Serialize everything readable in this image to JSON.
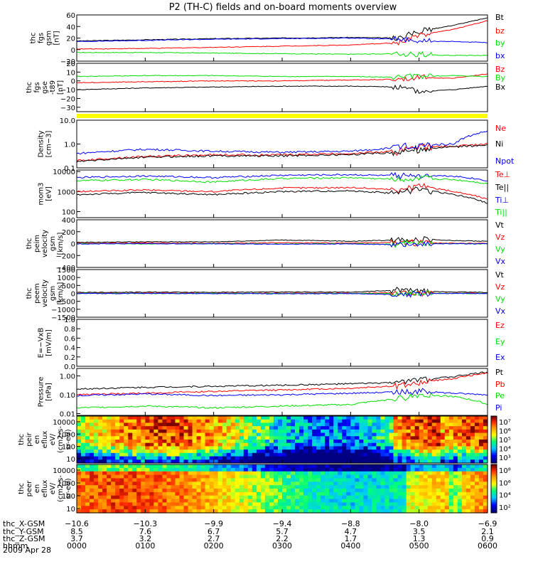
{
  "page": {
    "title": "P2 (TH-C) fields and on-board moments overview",
    "date_label": "2009 Apr 28"
  },
  "colors": {
    "black": "#000000",
    "red": "#ff0000",
    "green": "#00e000",
    "blue": "#0000ff",
    "yellow": "#ffff00",
    "tick": "#000000",
    "bg": "#ffffff"
  },
  "chart_data": [
    {
      "type": "line",
      "ylabel": [
        "thc",
        "fgs",
        "gsm",
        "[nT]"
      ],
      "ylim": [
        -20,
        60
      ],
      "yticks": [
        "60",
        "40",
        "20",
        "0",
        "−20"
      ],
      "series": [
        {
          "name": "Bt",
          "color": "black",
          "x": [
            0,
            1,
            2,
            3,
            4,
            4.7,
            5,
            5.5,
            6
          ],
          "y": [
            15,
            17,
            19,
            20,
            21,
            20,
            32,
            42,
            55
          ]
        },
        {
          "name": "bz",
          "color": "red",
          "x": [
            0,
            1,
            2,
            3,
            4,
            4.7,
            5,
            5.5,
            6
          ],
          "y": [
            1,
            2,
            4,
            6,
            8,
            12,
            25,
            35,
            50
          ]
        },
        {
          "name": "by",
          "color": "green",
          "x": [
            0,
            1,
            2,
            3,
            4,
            4.7,
            5,
            5.5,
            6
          ],
          "y": [
            -5,
            -5,
            -6,
            -7,
            -8,
            -7,
            -9,
            -10,
            -10
          ]
        },
        {
          "name": "bx",
          "color": "blue",
          "x": [
            0,
            1,
            2,
            3,
            4,
            4.7,
            5,
            5.5,
            6
          ],
          "y": [
            14,
            16,
            18,
            19,
            20,
            18,
            15,
            14,
            12
          ]
        }
      ]
    },
    {
      "type": "line",
      "ylabel": [
        "thc",
        "fgs",
        "gse",
        "-t89",
        "[nT]"
      ],
      "ylim": [
        -35,
        20
      ],
      "yticks": [
        "20",
        "10",
        "0",
        "−10",
        "−20",
        "−30"
      ],
      "series": [
        {
          "name": "Bz",
          "color": "red",
          "x": [
            0,
            1,
            2,
            3,
            4,
            4.7,
            5,
            5.5,
            6
          ],
          "y": [
            -2,
            -1,
            0,
            0,
            1,
            2,
            4,
            3,
            8
          ]
        },
        {
          "name": "By",
          "color": "green",
          "x": [
            0,
            1,
            2,
            3,
            4,
            4.7,
            5,
            5.5,
            6
          ],
          "y": [
            5,
            6,
            6,
            5,
            5,
            4,
            5,
            6,
            5
          ]
        },
        {
          "name": "Bx",
          "color": "black",
          "x": [
            0,
            1,
            2,
            3,
            4,
            4.7,
            5,
            5.5,
            6
          ],
          "y": [
            -10,
            -8,
            -7,
            -6,
            -6,
            -7,
            -12,
            -10,
            -6
          ]
        }
      ]
    },
    {
      "type": "bar",
      "description_bar": "quality flag strip",
      "color": "yellow"
    },
    {
      "type": "line",
      "scale": "log",
      "ylabel": [
        "Density",
        "[cm−3]"
      ],
      "ylim": [
        0.1,
        10
      ],
      "yticks": [
        "10.0",
        "1.0",
        "0.1"
      ],
      "series": [
        {
          "name": "Ne",
          "color": "red",
          "x": [
            0,
            1,
            2,
            3,
            4,
            4.7,
            5,
            5.5,
            6
          ],
          "y": [
            0.2,
            0.3,
            0.35,
            0.35,
            0.4,
            0.5,
            0.7,
            0.8,
            1.0
          ]
        },
        {
          "name": "Ni",
          "color": "black",
          "x": [
            0,
            1,
            2,
            3,
            4,
            4.7,
            5,
            5.5,
            6
          ],
          "y": [
            0.18,
            0.28,
            0.32,
            0.32,
            0.36,
            0.45,
            0.6,
            0.75,
            0.9
          ]
        },
        {
          "name": "Npot",
          "color": "blue",
          "x": [
            0,
            1,
            2,
            3,
            4,
            4.7,
            5,
            5.5,
            6
          ],
          "y": [
            0.4,
            0.6,
            0.5,
            0.45,
            0.5,
            0.7,
            0.9,
            1.0,
            3.5
          ]
        }
      ]
    },
    {
      "type": "line",
      "scale": "log",
      "ylabel": [
        "mom3",
        "[eV]"
      ],
      "ylim": [
        50,
        12000
      ],
      "yticks": [
        "10000",
        "1000",
        "100"
      ],
      "series": [
        {
          "name": "Te⊥",
          "color": "red",
          "x": [
            0,
            1,
            2,
            3,
            4,
            4.7,
            5,
            5.5,
            6
          ],
          "y": [
            1000,
            1200,
            1000,
            1500,
            1600,
            1200,
            1800,
            1000,
            400
          ]
        },
        {
          "name": "Te||",
          "color": "black",
          "x": [
            0,
            1,
            2,
            3,
            4,
            4.7,
            5,
            5.5,
            6
          ],
          "y": [
            700,
            900,
            700,
            1000,
            1100,
            800,
            1300,
            700,
            250
          ]
        },
        {
          "name": "Ti⊥",
          "color": "blue",
          "x": [
            0,
            1,
            2,
            3,
            4,
            4.7,
            5,
            5.5,
            6
          ],
          "y": [
            5000,
            6000,
            5000,
            6500,
            7000,
            6000,
            6500,
            6000,
            3500
          ]
        },
        {
          "name": "Ti||",
          "color": "green",
          "x": [
            0,
            1,
            2,
            3,
            4,
            4.7,
            5,
            5.5,
            6
          ],
          "y": [
            3500,
            4000,
            3000,
            4500,
            5000,
            4000,
            4500,
            4000,
            2500
          ]
        }
      ]
    },
    {
      "type": "line",
      "ylabel": [
        "thc",
        "peim",
        "velocity",
        "gsm",
        "[km/s]"
      ],
      "ylim": [
        -400,
        400
      ],
      "yticks": [
        "400",
        "200",
        "0",
        "−200",
        "−400"
      ],
      "series": [
        {
          "name": "Vt",
          "color": "black",
          "x": [
            0,
            1,
            2,
            3,
            4,
            4.7,
            5,
            5.5,
            6
          ],
          "y": [
            20,
            30,
            30,
            60,
            40,
            60,
            80,
            50,
            40
          ]
        },
        {
          "name": "Vz",
          "color": "red",
          "x": [
            0,
            1,
            2,
            3,
            4,
            4.7,
            5,
            5.5,
            6
          ],
          "y": [
            5,
            10,
            5,
            15,
            10,
            20,
            10,
            5,
            5
          ]
        },
        {
          "name": "Vy",
          "color": "green",
          "x": [
            0,
            1,
            2,
            3,
            4,
            4.7,
            5,
            5.5,
            6
          ],
          "y": [
            0,
            -5,
            0,
            -5,
            0,
            -10,
            0,
            0,
            -5
          ]
        },
        {
          "name": "Vx",
          "color": "blue",
          "x": [
            0,
            1,
            2,
            3,
            4,
            4.7,
            5,
            5.5,
            6
          ],
          "y": [
            -5,
            0,
            -5,
            -10,
            -5,
            -20,
            -10,
            0,
            -5
          ]
        }
      ]
    },
    {
      "type": "line",
      "ylabel": [
        "thc",
        "peem",
        "velocity",
        "gsm",
        "[km/s]"
      ],
      "ylim": [
        -1500,
        1500
      ],
      "yticks": [
        "1500",
        "1000",
        "500",
        "0",
        "−500",
        "−1000",
        "−1500"
      ],
      "series": [
        {
          "name": "Vt",
          "color": "black",
          "x": [
            0,
            1,
            2,
            3,
            4,
            4.7,
            5,
            5.5,
            6
          ],
          "y": [
            60,
            80,
            70,
            90,
            80,
            200,
            120,
            90,
            60
          ]
        },
        {
          "name": "Vz",
          "color": "red",
          "x": [
            0,
            1,
            2,
            3,
            4,
            4.7,
            5,
            5.5,
            6
          ],
          "y": [
            10,
            20,
            10,
            20,
            10,
            40,
            20,
            10,
            10
          ]
        },
        {
          "name": "Vy",
          "color": "green",
          "x": [
            0,
            1,
            2,
            3,
            4,
            4.7,
            5,
            5.5,
            6
          ],
          "y": [
            0,
            -10,
            0,
            -10,
            0,
            -20,
            0,
            0,
            -10
          ]
        },
        {
          "name": "Vx",
          "color": "blue",
          "x": [
            0,
            1,
            2,
            3,
            4,
            4.7,
            5,
            5.5,
            6
          ],
          "y": [
            -10,
            0,
            -10,
            -20,
            -10,
            -80,
            -20,
            0,
            -10
          ]
        }
      ]
    },
    {
      "type": "line",
      "ylabel": [
        "E=−VxB",
        "[mV/m]"
      ],
      "ylim": [
        0,
        1
      ],
      "yticks": [
        "1.0",
        "0.8",
        "0.6",
        "0.4",
        "0.2",
        "0.0"
      ],
      "series": [
        {
          "name": "Ez",
          "color": "red",
          "x": [],
          "y": []
        },
        {
          "name": "Ey",
          "color": "green",
          "x": [],
          "y": []
        },
        {
          "name": "Ex",
          "color": "blue",
          "x": [],
          "y": []
        }
      ]
    },
    {
      "type": "line",
      "scale": "log",
      "ylabel": [
        "Pressure",
        "[nPa]"
      ],
      "ylim": [
        0.008,
        2.5
      ],
      "yticks": [
        "1.00",
        "0.10",
        "0.01"
      ],
      "series": [
        {
          "name": "Pt",
          "color": "black",
          "x": [
            0,
            1,
            2,
            3,
            4,
            4.7,
            5,
            5.5,
            6
          ],
          "y": [
            0.2,
            0.25,
            0.28,
            0.32,
            0.38,
            0.45,
            0.6,
            0.9,
            1.6
          ]
        },
        {
          "name": "Pb",
          "color": "red",
          "x": [
            0,
            1,
            2,
            3,
            4,
            4.7,
            5,
            5.5,
            6
          ],
          "y": [
            0.1,
            0.12,
            0.15,
            0.18,
            0.22,
            0.3,
            0.45,
            0.7,
            1.4
          ]
        },
        {
          "name": "Pe",
          "color": "green",
          "x": [
            0,
            1,
            2,
            3,
            4,
            4.7,
            5,
            5.5,
            6
          ],
          "y": [
            0.02,
            0.025,
            0.02,
            0.025,
            0.03,
            0.06,
            0.1,
            0.08,
            0.03
          ]
        },
        {
          "name": "Pi",
          "color": "blue",
          "x": [
            0,
            1,
            2,
            3,
            4,
            4.7,
            5,
            5.5,
            6
          ],
          "y": [
            0.09,
            0.11,
            0.09,
            0.1,
            0.12,
            0.14,
            0.15,
            0.12,
            0.1
          ]
        }
      ]
    },
    {
      "type": "heatmap",
      "ylabel": [
        "thc",
        "peir",
        "en",
        "eflux",
        "eV/",
        "(cm2-s-",
        "sr-eV)"
      ],
      "yticks": [
        "10000",
        "1000",
        "100",
        "10"
      ],
      "colorbar_ticks": [
        "10⁷",
        "10⁶",
        "10⁵",
        "10⁴",
        "10³"
      ]
    },
    {
      "type": "heatmap",
      "ylabel": [
        "thc",
        "peer",
        "en",
        "eflux",
        "eV/",
        "(cm2-s-",
        "sr-eV)"
      ],
      "yticks": [
        "10000",
        "1000",
        "100",
        "10"
      ],
      "colorbar_ticks": [
        "10⁸",
        "10⁶",
        "10⁴",
        "10²"
      ]
    }
  ],
  "xaxis": {
    "rows": [
      {
        "label": "thc_X-GSM",
        "values": [
          "−10.6",
          "−10.3",
          "−9.9",
          "−9.4",
          "−8.8",
          "−8.0",
          "−6.9"
        ]
      },
      {
        "label": "thc_Y-GSM",
        "values": [
          "8.5",
          "7.6",
          "6.7",
          "5.7",
          "4.7",
          "3.5",
          "2.1"
        ]
      },
      {
        "label": "thc_Z-GSM",
        "values": [
          "3.7",
          "3.2",
          "2.7",
          "2.2",
          "1.7",
          "1.3",
          "0.9"
        ]
      },
      {
        "label": "hhmm",
        "values": [
          "0000",
          "0100",
          "0200",
          "0300",
          "0400",
          "0500",
          "0600"
        ]
      }
    ]
  }
}
